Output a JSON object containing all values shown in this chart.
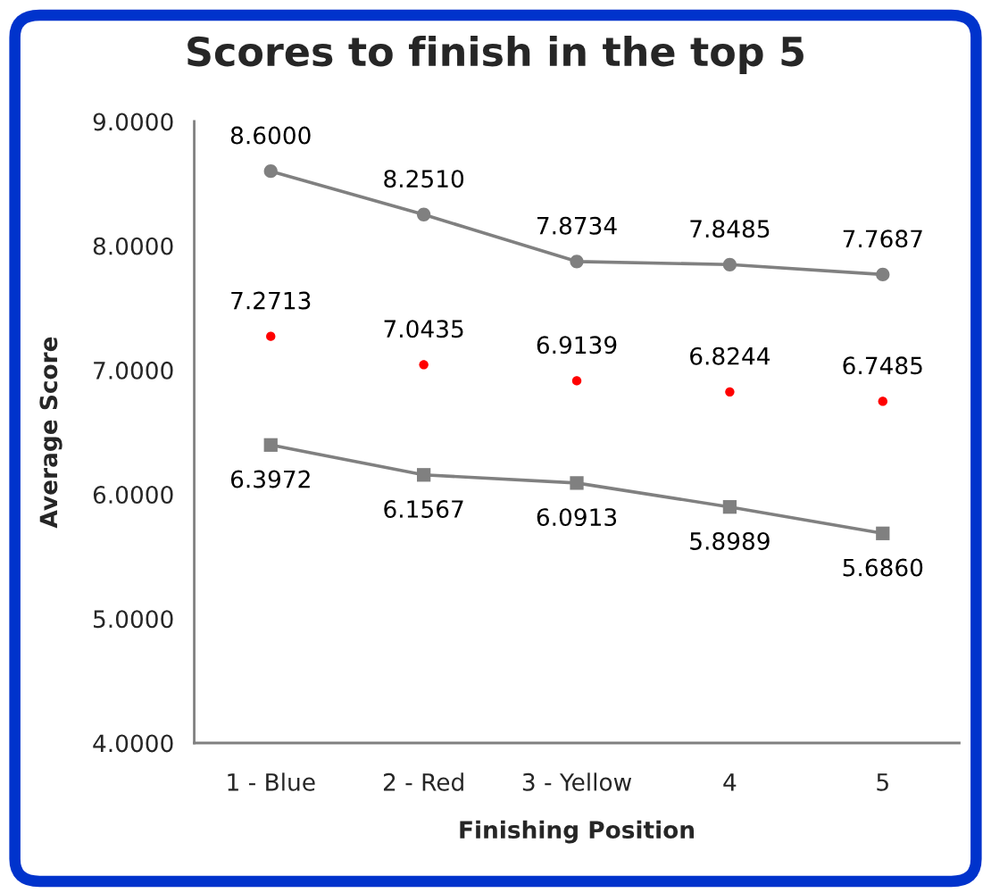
{
  "chart_data": {
    "type": "line",
    "title": "Scores to finish in the top 5",
    "xlabel": "Finishing Position",
    "ylabel": "Average Score",
    "categories": [
      "1 - Blue",
      "2 - Red",
      "3 - Yellow",
      "4",
      "5"
    ],
    "series": [
      {
        "color": "#808080",
        "marker": "circle",
        "values": [
          8.6,
          8.251,
          7.8734,
          7.8485,
          7.7687
        ],
        "value_labels": [
          "8.6000",
          "8.2510",
          "7.8734",
          "7.8485",
          "7.7687"
        ]
      },
      {
        "type": "scatter",
        "color": "#ff0000",
        "marker": "circle",
        "values": [
          7.2713,
          7.0435,
          6.9139,
          6.8244,
          6.7485
        ],
        "value_labels": [
          "7.2713",
          "7.0435",
          "6.9139",
          "6.8244",
          "6.7485"
        ]
      },
      {
        "color": "#808080",
        "marker": "square",
        "values": [
          6.3972,
          6.1567,
          6.0913,
          5.8989,
          5.686
        ],
        "value_labels": [
          "6.3972",
          "6.1567",
          "6.0913",
          "5.8989",
          "5.6860"
        ]
      }
    ],
    "ylim": [
      4,
      9
    ],
    "yticks": [
      {
        "value": 4,
        "label": "4.0000"
      },
      {
        "value": 5,
        "label": "5.0000"
      },
      {
        "value": 6,
        "label": "6.0000"
      },
      {
        "value": 7,
        "label": "7.0000"
      },
      {
        "value": 8,
        "label": "8.0000"
      },
      {
        "value": 9,
        "label": "9.0000"
      }
    ],
    "grid": false,
    "legend": false
  }
}
